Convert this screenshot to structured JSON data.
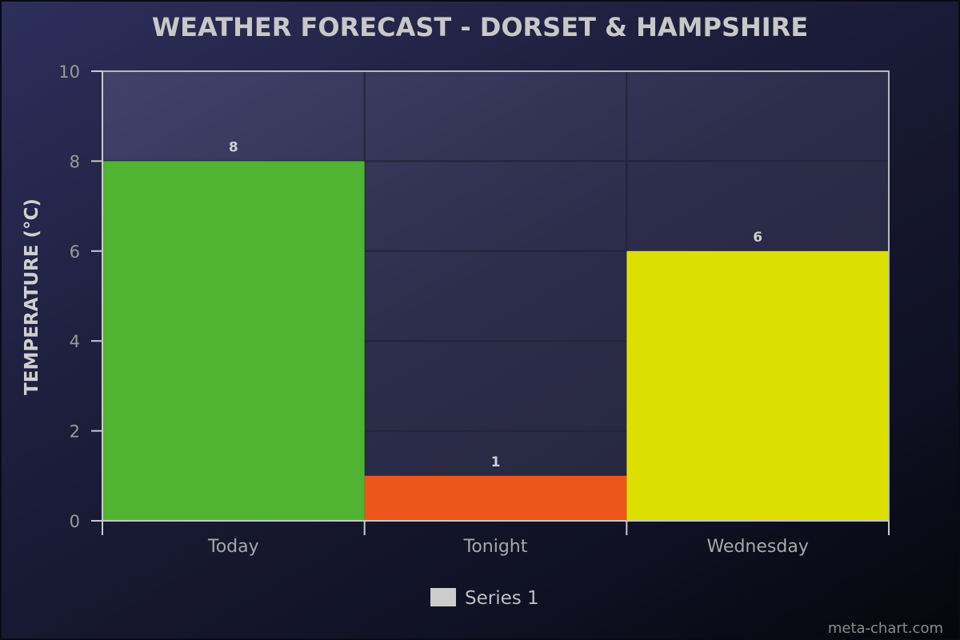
{
  "chart_data": {
    "type": "bar",
    "title": "WEATHER FORECAST - DORSET & HAMPSHIRE",
    "xlabel": "",
    "ylabel": "TEMPERATURE (°C)",
    "ylim": [
      0,
      10
    ],
    "yticks": [
      0,
      2,
      4,
      6,
      8,
      10
    ],
    "categories": [
      "Today",
      "Tonight",
      "Wednesday"
    ],
    "series": [
      {
        "name": "Series 1",
        "values": [
          8,
          1,
          6
        ],
        "colors": [
          "#50b432",
          "#ed561b",
          "#dddf00"
        ]
      }
    ],
    "legend_color": "#cccccc",
    "legend_position": "bottom-center",
    "grid": true,
    "credit": "meta-chart.com"
  }
}
